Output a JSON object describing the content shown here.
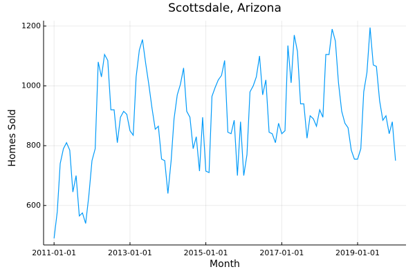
{
  "chart_data": {
    "type": "line",
    "title": "Scottsdale, Arizona",
    "x_label": "Month",
    "y_label": "Homes Sold",
    "x": [
      "2011-01-01",
      "2011-02-01",
      "2011-03-01",
      "2011-04-01",
      "2011-05-01",
      "2011-06-01",
      "2011-07-01",
      "2011-08-01",
      "2011-09-01",
      "2011-10-01",
      "2011-11-01",
      "2011-12-01",
      "2012-01-01",
      "2012-02-01",
      "2012-03-01",
      "2012-04-01",
      "2012-05-01",
      "2012-06-01",
      "2012-07-01",
      "2012-08-01",
      "2012-09-01",
      "2012-10-01",
      "2012-11-01",
      "2012-12-01",
      "2013-01-01",
      "2013-02-01",
      "2013-03-01",
      "2013-04-01",
      "2013-05-01",
      "2013-06-01",
      "2013-07-01",
      "2013-08-01",
      "2013-09-01",
      "2013-10-01",
      "2013-11-01",
      "2013-12-01",
      "2014-01-01",
      "2014-02-01",
      "2014-03-01",
      "2014-04-01",
      "2014-05-01",
      "2014-06-01",
      "2014-07-01",
      "2014-08-01",
      "2014-09-01",
      "2014-10-01",
      "2014-11-01",
      "2014-12-01",
      "2015-01-01",
      "2015-02-01",
      "2015-03-01",
      "2015-04-01",
      "2015-05-01",
      "2015-06-01",
      "2015-07-01",
      "2015-08-01",
      "2015-09-01",
      "2015-10-01",
      "2015-11-01",
      "2015-12-01",
      "2016-01-01",
      "2016-02-01",
      "2016-03-01",
      "2016-04-01",
      "2016-05-01",
      "2016-06-01",
      "2016-07-01",
      "2016-08-01",
      "2016-09-01",
      "2016-10-01",
      "2016-11-01",
      "2016-12-01",
      "2017-01-01",
      "2017-02-01",
      "2017-03-01",
      "2017-04-01",
      "2017-05-01",
      "2017-06-01",
      "2017-07-01",
      "2017-08-01",
      "2017-09-01",
      "2017-10-01",
      "2017-11-01",
      "2017-12-01",
      "2018-01-01",
      "2018-02-01",
      "2018-03-01",
      "2018-04-01",
      "2018-05-01",
      "2018-06-01",
      "2018-07-01",
      "2018-08-01",
      "2018-09-01",
      "2018-10-01",
      "2018-11-01",
      "2018-12-01",
      "2019-01-01",
      "2019-02-01",
      "2019-03-01",
      "2019-04-01",
      "2019-05-01",
      "2019-06-01",
      "2019-07-01",
      "2019-08-01",
      "2019-09-01",
      "2019-10-01",
      "2019-11-01",
      "2019-12-01",
      "2020-01-01"
    ],
    "series": [
      {
        "color": "#009af9",
        "values": [
          490,
          580,
          740,
          790,
          810,
          785,
          645,
          700,
          565,
          575,
          540,
          630,
          750,
          790,
          1080,
          1030,
          1105,
          1085,
          920,
          920,
          810,
          895,
          915,
          905,
          850,
          835,
          1030,
          1120,
          1155,
          1075,
          1005,
          925,
          855,
          865,
          755,
          750,
          640,
          750,
          890,
          970,
          1005,
          1060,
          915,
          895,
          790,
          830,
          715,
          895,
          715,
          710,
          965,
          995,
          1020,
          1035,
          1085,
          845,
          840,
          885,
          700,
          880,
          700,
          770,
          980,
          1000,
          1030,
          1100,
          970,
          1020,
          845,
          840,
          810,
          875,
          840,
          850,
          1135,
          1010,
          1170,
          1115,
          940,
          940,
          825,
          900,
          890,
          865,
          920,
          895,
          1105,
          1105,
          1190,
          1150,
          1010,
          915,
          875,
          860,
          785,
          755,
          755,
          790,
          980,
          1045,
          1195,
          1070,
          1065,
          950,
          885,
          900,
          840,
          880,
          750
        ]
      }
    ],
    "xlim": [
      "2010-09-22",
      "2020-04-11"
    ],
    "xticks": [
      "2011-01-01",
      "2013-01-01",
      "2015-01-01",
      "2017-01-01",
      "2019-01-01"
    ],
    "ylim": [
      468,
      1218
    ],
    "yticks": [
      600,
      800,
      1000,
      1200
    ],
    "grid": true
  }
}
